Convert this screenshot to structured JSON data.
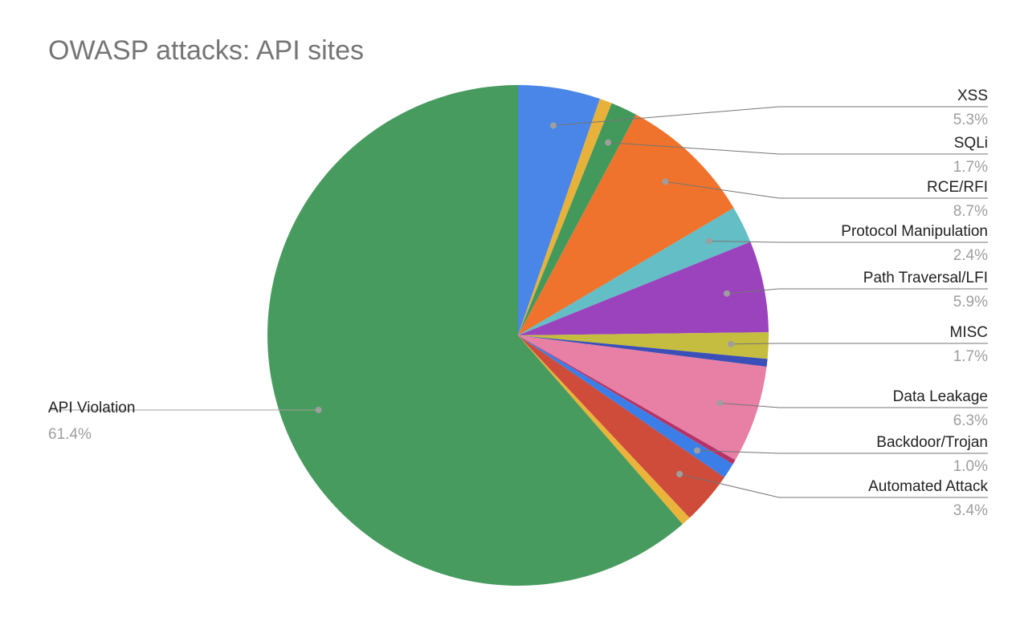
{
  "chart_data": {
    "type": "pie",
    "title": "OWASP attacks: API sites",
    "categories": [
      "XSS",
      null,
      "SQLi",
      "RCE/RFI",
      "Protocol Manipulation",
      "Path Traversal/LFI",
      "MISC",
      null,
      "Data Leakage",
      null,
      "Backdoor/Trojan",
      "Automated Attack",
      null,
      "API Violation"
    ],
    "values": [
      5.3,
      0.8,
      1.7,
      8.7,
      2.4,
      5.9,
      1.7,
      0.5,
      6.3,
      0.3,
      1.0,
      3.4,
      0.6,
      61.4
    ],
    "value_labels": [
      "5.3%",
      null,
      "1.7%",
      "8.7%",
      "2.4%",
      "5.9%",
      "1.7%",
      null,
      "6.3%",
      null,
      "1.0%",
      "3.4%",
      null,
      "61.4%"
    ],
    "colors": [
      "#4a86e8",
      "#e8b23a",
      "#43995c",
      "#ef732c",
      "#63bec5",
      "#9a43bd",
      "#c5bd3f",
      "#3a4fb8",
      "#e87fa5",
      "#b53367",
      "#3b7ee8",
      "#cf4b3a",
      "#eab43a",
      "#479b5e"
    ]
  }
}
